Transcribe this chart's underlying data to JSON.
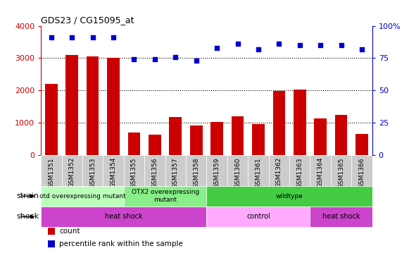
{
  "title": "GDS23 / CG15095_at",
  "categories": [
    "GSM1351",
    "GSM1352",
    "GSM1353",
    "GSM1354",
    "GSM1355",
    "GSM1356",
    "GSM1357",
    "GSM1358",
    "GSM1359",
    "GSM1360",
    "GSM1361",
    "GSM1362",
    "GSM1363",
    "GSM1364",
    "GSM1365",
    "GSM1366"
  ],
  "counts": [
    2200,
    3100,
    3050,
    3000,
    700,
    620,
    1180,
    900,
    1010,
    1200,
    950,
    1980,
    2020,
    1120,
    1230,
    650
  ],
  "percentiles": [
    91,
    91,
    91,
    91,
    74,
    74,
    76,
    73,
    83,
    86,
    82,
    86,
    85,
    85,
    85,
    82
  ],
  "bar_color": "#cc0000",
  "scatter_color": "#0000cc",
  "ylim_left": [
    0,
    4000
  ],
  "ylim_right": [
    0,
    100
  ],
  "yticks_left": [
    0,
    1000,
    2000,
    3000,
    4000
  ],
  "yticks_right": [
    0,
    25,
    50,
    75,
    100
  ],
  "strain_groups": [
    {
      "label": "otd overexpressing mutant",
      "start": 0,
      "end": 4,
      "color": "#bbffbb"
    },
    {
      "label": "OTX2 overexpressing\nmutant",
      "start": 4,
      "end": 8,
      "color": "#88ee88"
    },
    {
      "label": "wildtype",
      "start": 8,
      "end": 16,
      "color": "#44cc44"
    }
  ],
  "shock_groups": [
    {
      "label": "heat shock",
      "start": 0,
      "end": 8,
      "color": "#cc44cc"
    },
    {
      "label": "control",
      "start": 8,
      "end": 13,
      "color": "#ffaaff"
    },
    {
      "label": "heat shock",
      "start": 13,
      "end": 16,
      "color": "#cc44cc"
    }
  ],
  "strain_label": "strain",
  "shock_label": "shock",
  "legend_items": [
    {
      "label": "count",
      "color": "#cc0000",
      "marker": "s"
    },
    {
      "label": "percentile rank within the sample",
      "color": "#0000cc",
      "marker": "s"
    }
  ],
  "bg_color": "#ffffff",
  "left_axis_color": "#cc0000",
  "right_axis_color": "#0000cc",
  "xtick_bg": "#cccccc"
}
